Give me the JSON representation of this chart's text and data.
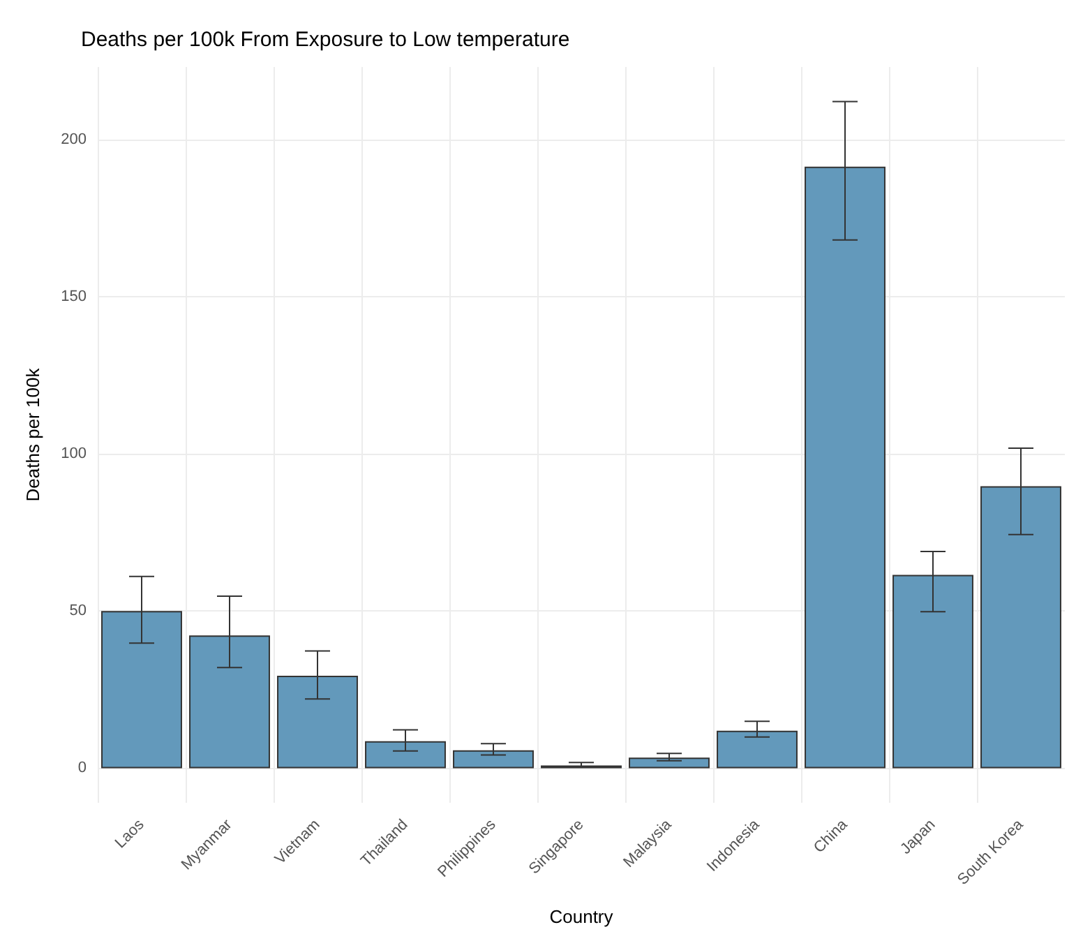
{
  "chart_data": {
    "type": "bar",
    "title": "Deaths per 100k From Exposure to Low temperature",
    "xlabel": "Country",
    "ylabel": "Deaths per 100k",
    "categories": [
      "Laos",
      "Myanmar",
      "Vietnam",
      "Thailand",
      "Philippines",
      "Singapore",
      "Malaysia",
      "Indonesia",
      "China",
      "Japan",
      "South Korea"
    ],
    "values": [
      50,
      42.2,
      29.4,
      8.6,
      5.7,
      0.9,
      3.4,
      11.9,
      191.3,
      61.5,
      89.7
    ],
    "errors": [
      [
        39.8,
        61
      ],
      [
        32,
        54.7
      ],
      [
        22,
        37.3
      ],
      [
        5.5,
        12.2
      ],
      [
        4.2,
        7.8
      ],
      [
        0.3,
        1.8
      ],
      [
        2.4,
        4.7
      ],
      [
        9.9,
        14.9
      ],
      [
        168,
        212
      ],
      [
        49.8,
        68.9
      ],
      [
        74.3,
        101.8
      ]
    ],
    "color": "#6399bb",
    "ylim": [
      -11,
      223
    ],
    "yticks": [
      0,
      50,
      100,
      150,
      200
    ],
    "grid": true
  }
}
